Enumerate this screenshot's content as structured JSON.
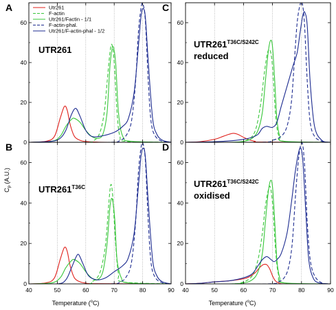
{
  "figure": {
    "ylabel_main": "C",
    "ylabel_sub": "p",
    "ylabel_unit": " (A.U.)",
    "xlabel_left": "Temperature (",
    "xlabel_deg": "o",
    "xlabel_right": "C)"
  },
  "colors": {
    "red": "#e0201b",
    "green": "#38c63a",
    "navy": "#1b2a8f",
    "grid": "#8c8c8c"
  },
  "chart_data": [
    {
      "type": "line",
      "panel_label": "A",
      "title": "UTR261",
      "title_sup": "",
      "title_line2": "",
      "xlim": [
        40,
        90
      ],
      "ylim": [
        0,
        70
      ],
      "xticks": [
        40,
        50,
        60,
        70,
        80,
        90
      ],
      "yticks": [
        0,
        20,
        40,
        60
      ],
      "grid_x": [
        50,
        60,
        70,
        80
      ],
      "legend": "top-left",
      "series": [
        {
          "name": "Utr261",
          "style": "solid",
          "color": "red",
          "x": [
            40,
            46,
            49,
            51,
            52.5,
            53.5,
            54.5,
            56,
            58,
            60,
            64,
            70,
            90
          ],
          "y": [
            0,
            0.5,
            3,
            12,
            18,
            16,
            9,
            3,
            1,
            0.4,
            0.1,
            0,
            0
          ]
        },
        {
          "name": "F-actin",
          "style": "dashed",
          "color": "green",
          "x": [
            40,
            60,
            63,
            65,
            66.5,
            67.5,
            68.5,
            69.2,
            70,
            71,
            72,
            74,
            90
          ],
          "y": [
            0,
            0,
            1,
            5,
            15,
            30,
            45,
            49,
            40,
            15,
            3,
            0.5,
            0
          ]
        },
        {
          "name": "Utr261/Factin - 1/1",
          "style": "solid",
          "color": "green",
          "x": [
            40,
            48,
            51,
            53,
            55,
            56,
            58,
            60,
            62,
            64,
            66,
            67.5,
            68.5,
            69.5,
            70.5,
            71.5,
            73,
            76,
            90
          ],
          "y": [
            0,
            0.5,
            3,
            8,
            11.5,
            12,
            10,
            6,
            3,
            2,
            4,
            15,
            38,
            48,
            40,
            15,
            3,
            0.5,
            0
          ]
        },
        {
          "name": "F-actin-phal.",
          "style": "dashed",
          "color": "navy",
          "x": [
            40,
            68,
            72,
            74,
            76,
            77.5,
            78.5,
            79.5,
            80.2,
            81,
            82,
            83,
            84.5,
            87,
            90
          ],
          "y": [
            0,
            0,
            1,
            3,
            10,
            30,
            55,
            68,
            69,
            60,
            30,
            10,
            3,
            0.5,
            0
          ]
        },
        {
          "name": "Utr261/F-actin-phal - 1/2",
          "style": "solid",
          "color": "navy",
          "x": [
            40,
            48,
            51,
            53,
            55,
            56.5,
            58,
            60,
            62,
            65,
            70,
            73,
            75,
            77,
            78.5,
            79.5,
            80.3,
            81,
            82,
            83.5,
            85,
            87,
            90
          ],
          "y": [
            0,
            0.5,
            2,
            6,
            14,
            17,
            13,
            6,
            3,
            3,
            5,
            8,
            12,
            25,
            48,
            64,
            67,
            62,
            40,
            12,
            4,
            1,
            0
          ]
        }
      ]
    },
    {
      "type": "line",
      "panel_label": "B",
      "title": "UTR261",
      "title_sup": "T36C",
      "title_line2": "",
      "xlim": [
        40,
        90
      ],
      "ylim": [
        0,
        70
      ],
      "xticks": [
        40,
        50,
        60,
        70,
        80,
        90
      ],
      "yticks": [
        0,
        20,
        40,
        60
      ],
      "grid_x": [
        50,
        60,
        70,
        80
      ],
      "legend": "",
      "series": [
        {
          "name": "Utr261",
          "style": "solid",
          "color": "red",
          "x": [
            40,
            46,
            49,
            51,
            52.5,
            53.5,
            54.5,
            56,
            58,
            60,
            64,
            90
          ],
          "y": [
            0,
            0.5,
            3,
            12,
            18,
            16,
            9,
            3,
            1,
            0.4,
            0.1,
            0
          ]
        },
        {
          "name": "F-actin",
          "style": "dashed",
          "color": "green",
          "x": [
            40,
            60,
            62,
            64,
            65.5,
            67,
            68,
            68.8,
            69.5,
            70.5,
            71.5,
            73,
            90
          ],
          "y": [
            0,
            0,
            1,
            3,
            8,
            20,
            38,
            49,
            43,
            20,
            5,
            1,
            0
          ]
        },
        {
          "name": "Utr261/Factin - 1/1",
          "style": "solid",
          "color": "green",
          "x": [
            40,
            48,
            51,
            53,
            55,
            56,
            58,
            60,
            62,
            64,
            66,
            67.5,
            68.5,
            69.3,
            70.2,
            71,
            72.5,
            75,
            90
          ],
          "y": [
            0,
            0.5,
            3,
            8,
            11.5,
            12,
            10,
            6,
            3,
            2,
            6,
            20,
            38,
            42,
            32,
            12,
            3,
            0.5,
            0
          ]
        },
        {
          "name": "F-actin-phal.",
          "style": "dashed",
          "color": "navy",
          "x": [
            40,
            68,
            72,
            74,
            76,
            77.5,
            78.5,
            79.5,
            80.2,
            81,
            82,
            83,
            84.5,
            87,
            90
          ],
          "y": [
            0,
            0,
            1,
            3,
            10,
            30,
            55,
            68,
            69,
            60,
            30,
            10,
            3,
            0.5,
            0
          ]
        },
        {
          "name": "Utr261/F-actin-phal - 1/2",
          "style": "solid",
          "color": "navy",
          "x": [
            40,
            50,
            53,
            55,
            56.5,
            57.5,
            59,
            61,
            64,
            67,
            70,
            73,
            75,
            77,
            78.5,
            79.5,
            80.3,
            81,
            82,
            83.5,
            85,
            87,
            90
          ],
          "y": [
            0,
            0,
            2,
            8,
            13,
            14.5,
            10,
            4,
            2,
            3,
            6,
            9,
            13,
            25,
            48,
            64,
            67,
            62,
            40,
            12,
            4,
            1,
            0
          ]
        }
      ]
    },
    {
      "type": "line",
      "panel_label": "C",
      "title": "UTR261",
      "title_sup": "T36C/S242C",
      "title_line2": "reduced",
      "xlim": [
        40,
        90
      ],
      "ylim": [
        0,
        70
      ],
      "xticks": [
        40,
        50,
        60,
        70,
        80,
        90
      ],
      "yticks": [
        0,
        20,
        40,
        60
      ],
      "grid_x": [
        50,
        60,
        70,
        80
      ],
      "legend": "",
      "series": [
        {
          "name": "Utr261",
          "style": "solid",
          "color": "red",
          "x": [
            40,
            45,
            50,
            53,
            55,
            56.5,
            58,
            60,
            62,
            64,
            66,
            90
          ],
          "y": [
            0,
            0.3,
            1.5,
            3,
            4,
            4.5,
            4,
            2.5,
            1.2,
            0.5,
            0.1,
            0
          ]
        },
        {
          "name": "F-actin",
          "style": "dashed",
          "color": "green",
          "x": [
            40,
            58,
            61,
            63,
            64.5,
            66,
            67.2,
            68.3,
            69.2,
            70,
            71,
            72,
            74,
            90
          ],
          "y": [
            0,
            0,
            1,
            3,
            8,
            20,
            35,
            45,
            46,
            38,
            15,
            4,
            0.5,
            0
          ]
        },
        {
          "name": "Utr261/Factin - 1/1",
          "style": "solid",
          "color": "green",
          "x": [
            40,
            55,
            60,
            63,
            65,
            66.5,
            67.5,
            68.5,
            69.3,
            70,
            70.8,
            71.5,
            72.5,
            74,
            90
          ],
          "y": [
            0,
            0,
            0.5,
            2,
            6,
            15,
            30,
            45,
            51,
            48,
            30,
            12,
            3,
            0.5,
            0
          ]
        },
        {
          "name": "F-actin-phal.",
          "style": "dashed",
          "color": "navy",
          "x": [
            40,
            66,
            70,
            73,
            75,
            76.5,
            77.5,
            78.5,
            79.5,
            80.2,
            81,
            82,
            83,
            84.5,
            87,
            90
          ],
          "y": [
            0,
            0,
            1,
            3,
            8,
            20,
            40,
            60,
            69,
            70,
            60,
            30,
            10,
            3,
            0.5,
            0
          ]
        },
        {
          "name": "Utr261/F-actin-phal - 1/2",
          "style": "solid",
          "color": "navy",
          "x": [
            40,
            50,
            56,
            60,
            63,
            65,
            66.5,
            68,
            70,
            71.5,
            73,
            75,
            77,
            78.5,
            79.5,
            80.5,
            81.2,
            82,
            83,
            84.5,
            87,
            90
          ],
          "y": [
            0,
            0.3,
            0.8,
            1.5,
            2.5,
            4,
            7,
            8,
            7.5,
            10,
            18,
            28,
            38,
            45,
            55,
            64,
            65,
            58,
            30,
            8,
            1,
            0
          ]
        }
      ]
    },
    {
      "type": "line",
      "panel_label": "D",
      "title": "UTR261",
      "title_sup": "T36C/S242C",
      "title_line2": "oxidised",
      "xlim": [
        40,
        90
      ],
      "ylim": [
        0,
        70
      ],
      "xticks": [
        40,
        50,
        60,
        70,
        80,
        90
      ],
      "yticks": [
        0,
        20,
        40,
        60
      ],
      "grid_x": [
        50,
        60,
        70,
        80
      ],
      "legend": "",
      "series": [
        {
          "name": "Utr261",
          "style": "solid",
          "color": "red",
          "x": [
            40,
            45,
            50,
            55,
            60,
            62,
            64,
            65.5,
            66.8,
            68,
            69,
            70,
            71,
            72.5,
            75,
            90
          ],
          "y": [
            0,
            0.3,
            1,
            1.5,
            2.5,
            3.5,
            5.5,
            8,
            9.5,
            9.5,
            7.5,
            4,
            1.5,
            0.3,
            0,
            0
          ]
        },
        {
          "name": "F-actin",
          "style": "dashed",
          "color": "green",
          "x": [
            40,
            56,
            60,
            63,
            65,
            66.5,
            67.5,
            68.5,
            69.2,
            70,
            71,
            72,
            74,
            90
          ],
          "y": [
            0,
            0,
            1,
            4,
            12,
            25,
            38,
            46,
            48,
            40,
            18,
            5,
            0.5,
            0
          ]
        },
        {
          "name": "Utr261/Factin - 1/1",
          "style": "solid",
          "color": "green",
          "x": [
            40,
            55,
            60,
            63,
            65,
            66.5,
            67.5,
            68.5,
            69.3,
            70,
            70.8,
            71.5,
            72.5,
            74,
            90
          ],
          "y": [
            0,
            0,
            0.5,
            2,
            6,
            15,
            30,
            45,
            51,
            48,
            30,
            12,
            3,
            0.5,
            0
          ]
        },
        {
          "name": "F-actin-phal.",
          "style": "dashed",
          "color": "navy",
          "x": [
            40,
            68,
            72,
            74,
            75.5,
            76.8,
            78,
            79,
            79.8,
            80.5,
            81.2,
            82,
            83,
            84.5,
            87,
            90
          ],
          "y": [
            0,
            0,
            1,
            3,
            8,
            20,
            45,
            62,
            69,
            68,
            55,
            30,
            12,
            4,
            0.5,
            0
          ]
        },
        {
          "name": "Utr261/F-actin-phal - 1/2",
          "style": "solid",
          "color": "navy",
          "x": [
            40,
            45,
            50,
            55,
            60,
            63,
            65,
            66.5,
            68,
            69.5,
            70.5,
            71.5,
            73,
            75,
            76.5,
            77.8,
            79,
            79.8,
            80.5,
            81.5,
            82.5,
            84,
            86,
            90
          ],
          "y": [
            0,
            0.3,
            1,
            1.5,
            3,
            5,
            9,
            12,
            13.5,
            12,
            11,
            12,
            15,
            25,
            40,
            55,
            65,
            67,
            60,
            35,
            12,
            3,
            0.5,
            0
          ]
        }
      ]
    }
  ]
}
